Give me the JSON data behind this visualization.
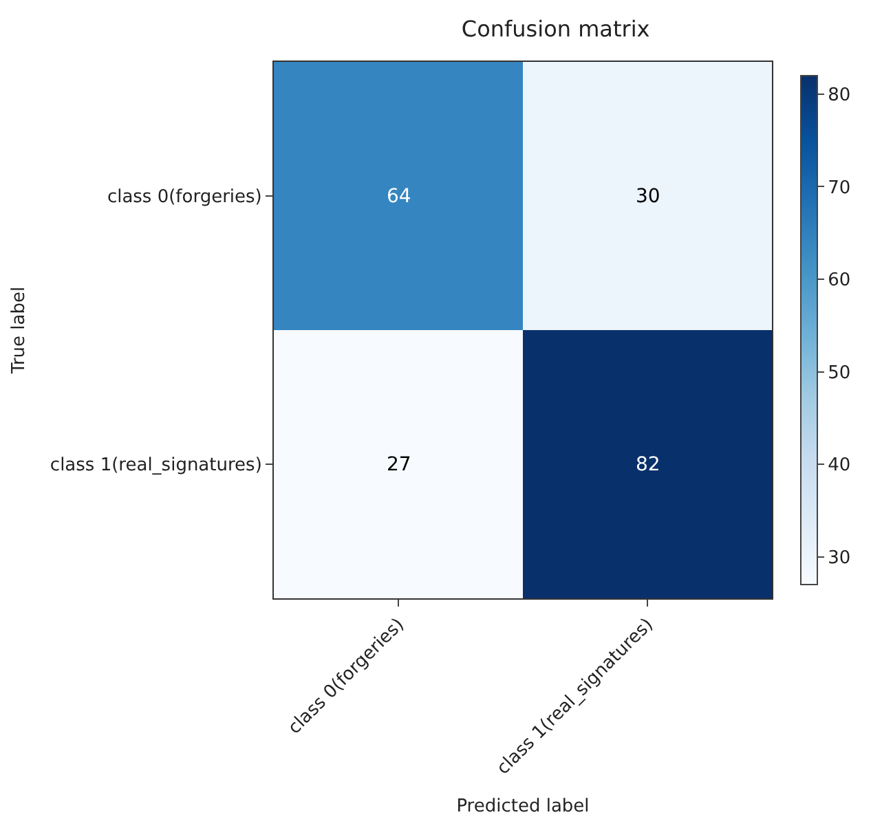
{
  "chart_data": {
    "type": "heatmap",
    "title": "Confusion matrix",
    "xlabel": "Predicted label",
    "ylabel": "True label",
    "categories": [
      "class 0(forgeries)",
      "class 1(real_signatures)"
    ],
    "y_categories": [
      "class 0(forgeries)",
      "class 1(real_signatures)"
    ],
    "cells": [
      [
        64,
        30
      ],
      [
        27,
        82
      ]
    ],
    "clim": [
      27,
      82
    ],
    "cticks": [
      30,
      40,
      50,
      60,
      70,
      80
    ],
    "data_labels": true
  }
}
